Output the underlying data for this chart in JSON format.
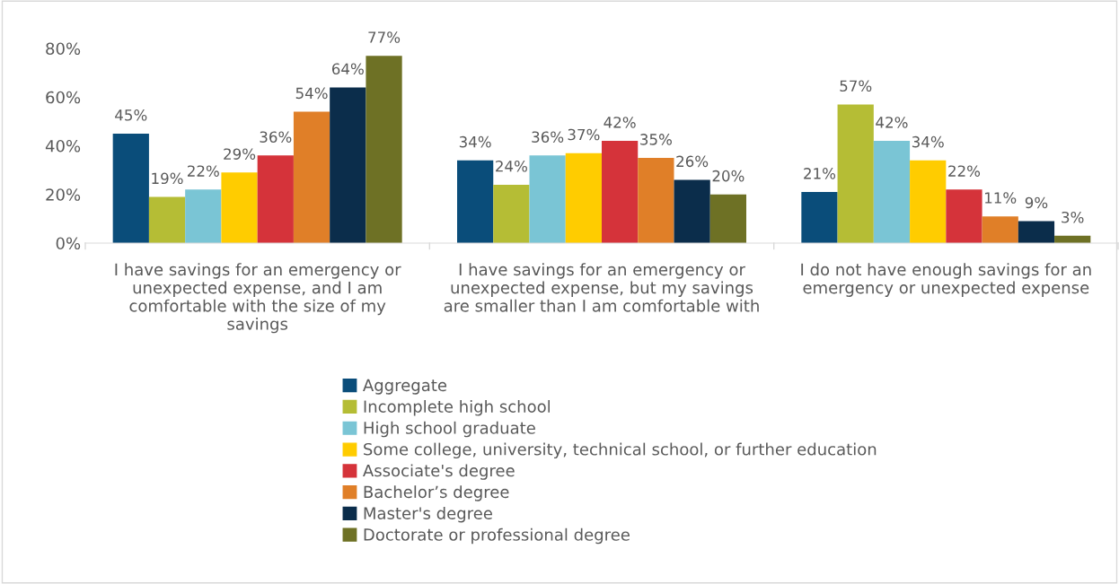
{
  "chart_data": {
    "type": "bar",
    "categories": [
      "I have savings for an emergency or\nunexpected expense, and I am\ncomfortable with the size of my\nsavings",
      "I have savings for an emergency or\nunexpected expense, but my savings\nare smaller than I am comfortable with",
      "I do not have enough savings for an\nemergency or unexpected expense"
    ],
    "series": [
      {
        "name": "Aggregate",
        "color": "#0a4d7a",
        "values": [
          45,
          34,
          21
        ],
        "value_labels": [
          "45%",
          "34%",
          "21%"
        ]
      },
      {
        "name": "Incomplete high school",
        "color": "#b5bd35",
        "values": [
          19,
          24,
          57
        ],
        "value_labels": [
          "19%",
          "24%",
          "57%"
        ]
      },
      {
        "name": "High school graduate",
        "color": "#7ac5d5",
        "values": [
          22,
          36,
          42
        ],
        "value_labels": [
          "22%",
          "36%",
          "42%"
        ]
      },
      {
        "name": "Some college, university, technical school, or further education",
        "color": "#ffcc00",
        "values": [
          29,
          37,
          34
        ],
        "value_labels": [
          "29%",
          "37%",
          "34%"
        ]
      },
      {
        "name": "Associate's degree",
        "color": "#d5333a",
        "values": [
          36,
          42,
          22
        ],
        "value_labels": [
          "36%",
          "42%",
          "22%"
        ]
      },
      {
        "name": "Bachelor’s degree",
        "color": "#e07f28",
        "values": [
          54,
          35,
          11
        ],
        "value_labels": [
          "54%",
          "35%",
          "11%"
        ]
      },
      {
        "name": "Master's degree",
        "color": "#0b2d4b",
        "values": [
          64,
          26,
          9
        ],
        "value_labels": [
          "64%",
          "26%",
          "9%"
        ]
      },
      {
        "name": "Doctorate or professional degree",
        "color": "#6e7125",
        "values": [
          77,
          20,
          3
        ],
        "value_labels": [
          "77%",
          "20%",
          "3%"
        ]
      }
    ],
    "ylim": [
      0,
      80
    ],
    "yticks": [
      {
        "value": 0,
        "label": "0%"
      },
      {
        "value": 20,
        "label": "20%"
      },
      {
        "value": 40,
        "label": "40%"
      },
      {
        "value": 60,
        "label": "60%"
      },
      {
        "value": 80,
        "label": "80%"
      }
    ],
    "grid": false,
    "legend": "bottom"
  }
}
